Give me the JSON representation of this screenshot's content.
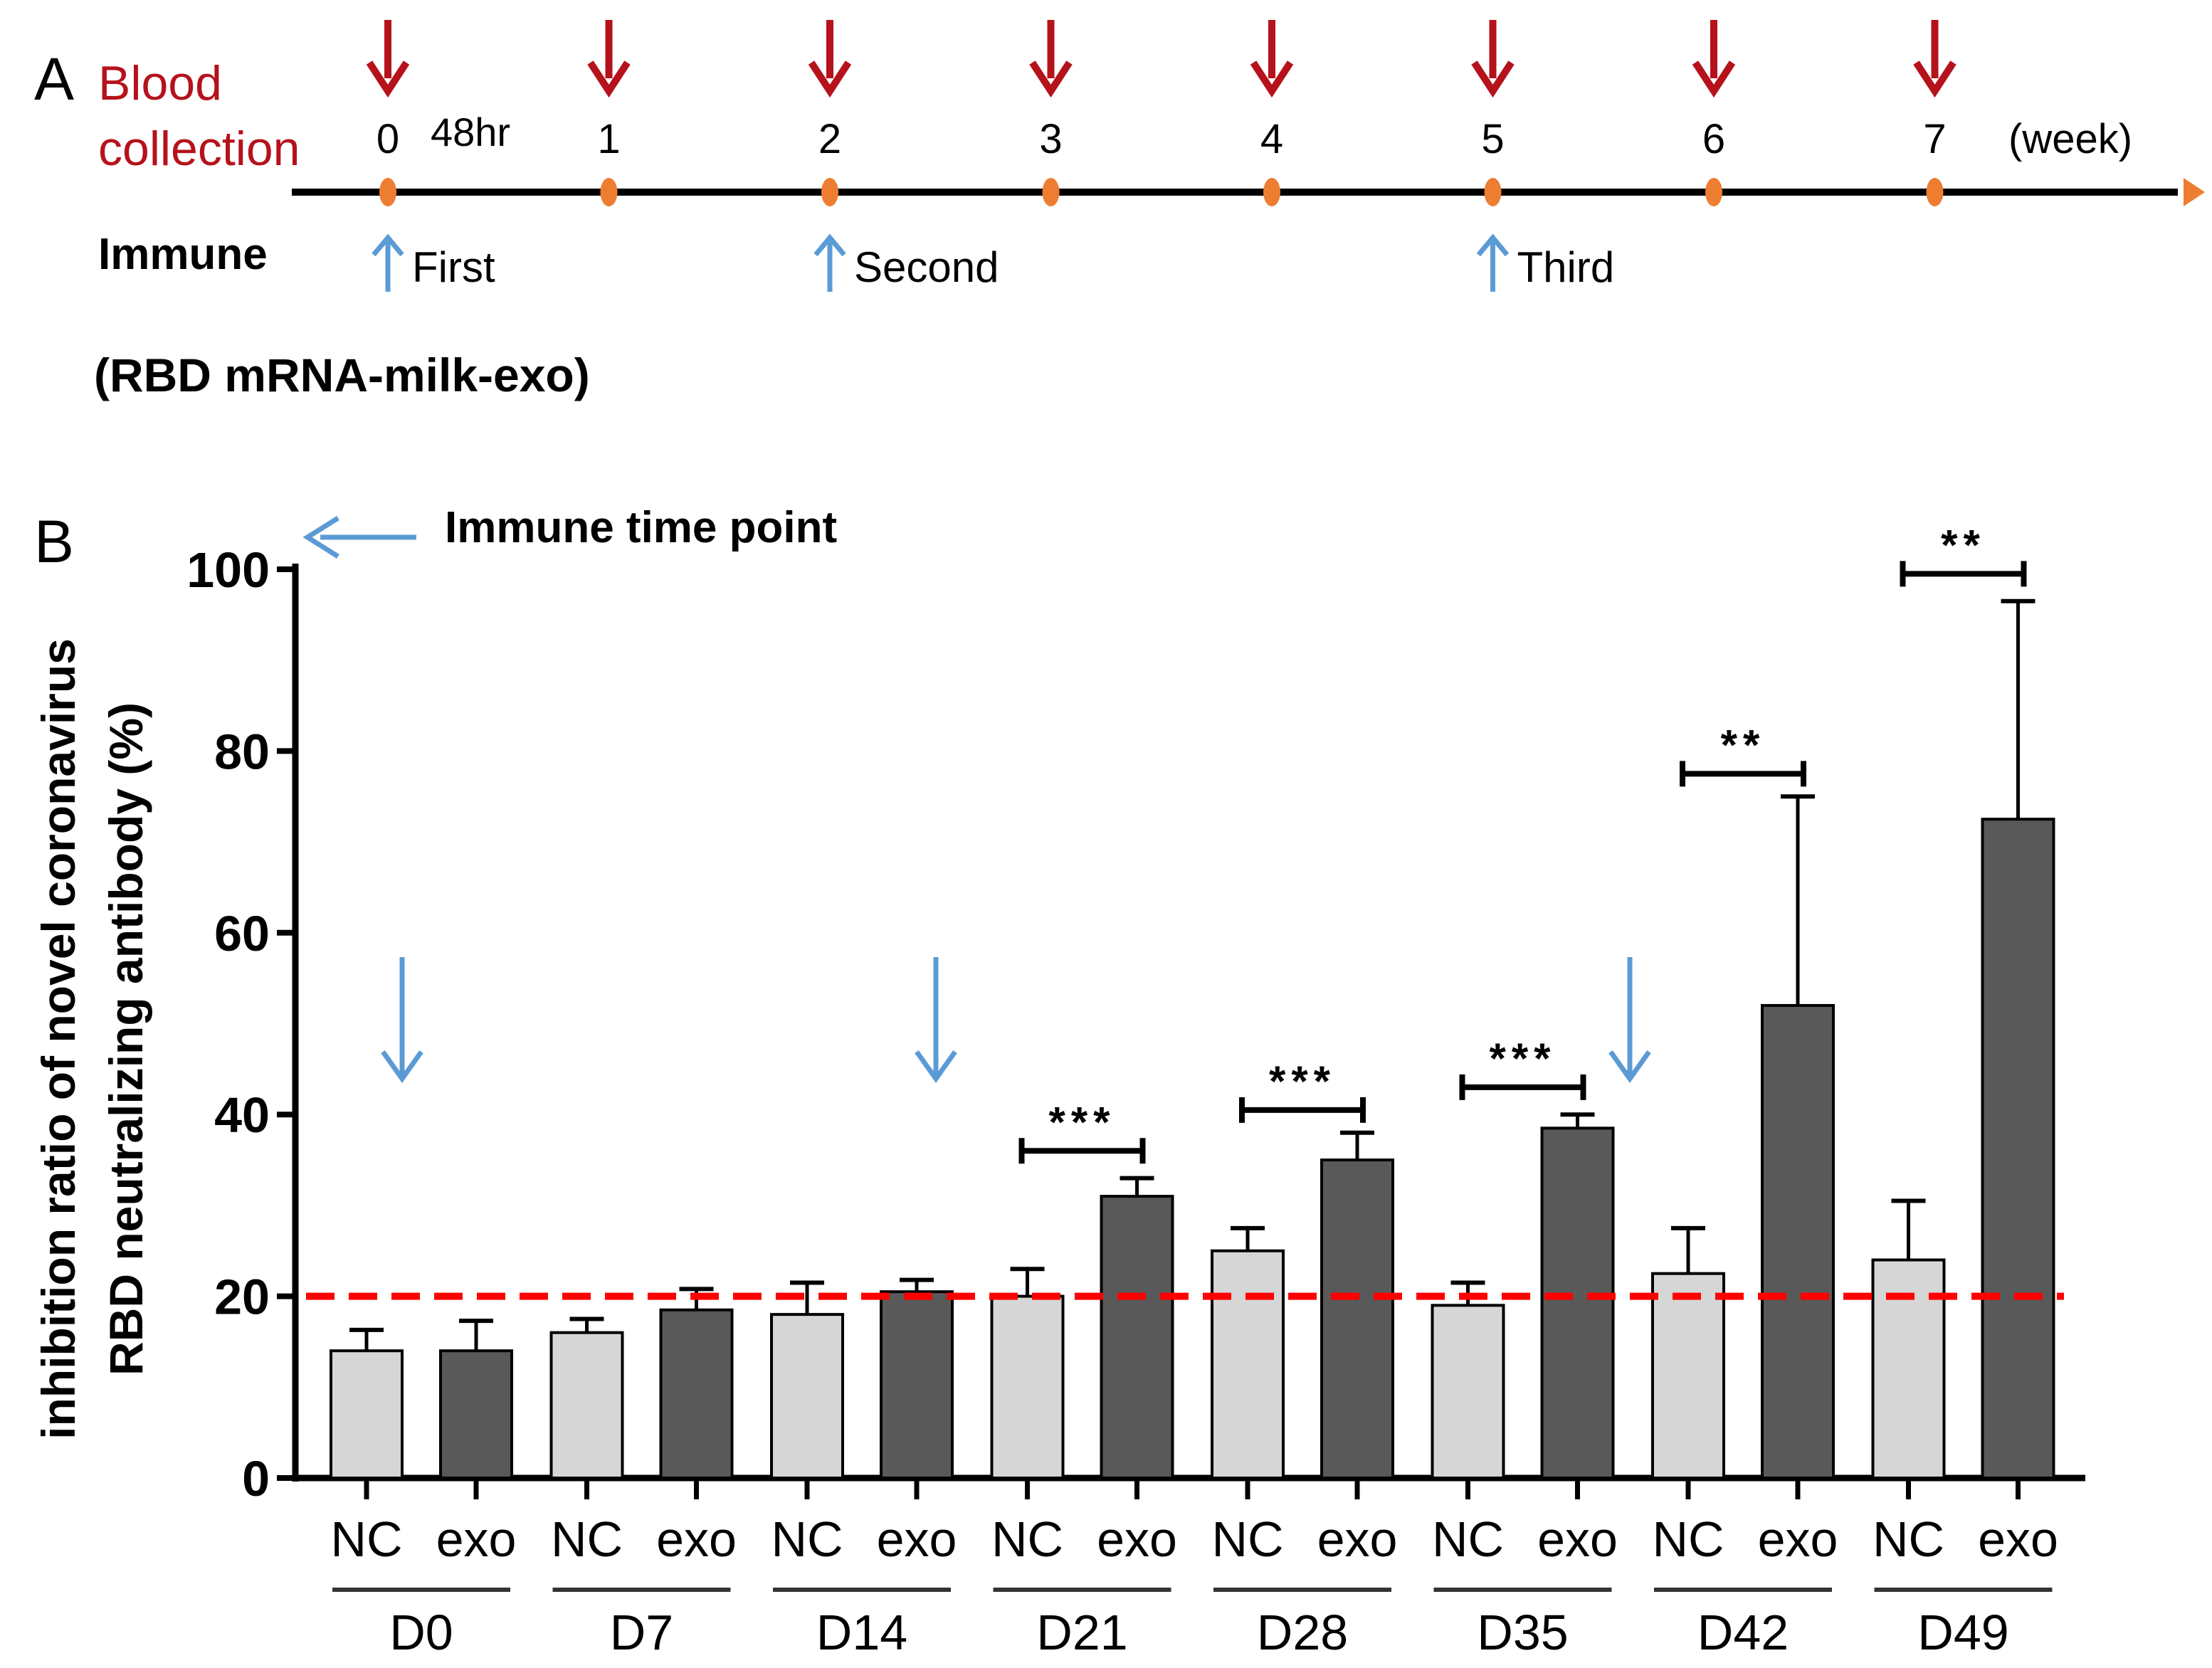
{
  "panel_a": {
    "label": "A",
    "blood_line1": "Blood",
    "blood_line2": "collection",
    "immune_label": "Immune",
    "vaccine_label": "(RBD mRNA-milk-exo)",
    "extra_tick_label": "48hr",
    "unit_label": "(week)",
    "weeks": [
      "0",
      "1",
      "2",
      "3",
      "4",
      "5",
      "6",
      "7"
    ],
    "immunizations": [
      {
        "week": 0,
        "label": "First"
      },
      {
        "week": 2,
        "label": "Second"
      },
      {
        "week": 5,
        "label": "Third"
      }
    ]
  },
  "panel_b": {
    "label": "B",
    "legend_text": "Immune time point"
  },
  "colors": {
    "blood_red": "#b5121b",
    "immune_blue": "#5b9bd5",
    "dot_orange": "#ed7d31",
    "nc_fill": "#d6d6d6",
    "exo_fill": "#595959",
    "threshold_red": "#ff0000",
    "axis": "#000000"
  },
  "chart_data": {
    "type": "bar",
    "title": "",
    "ylabel_line1": "inhibition ratio of novel coronavirus",
    "ylabel_line2": "RBD neutralizing antibody (%)",
    "xlabel": "",
    "ylim": [
      0,
      100
    ],
    "yticks": [
      "0",
      "20",
      "40",
      "60",
      "80",
      "100"
    ],
    "groups": [
      "D0",
      "D7",
      "D14",
      "D21",
      "D28",
      "D35",
      "D42",
      "D49"
    ],
    "subcategories": [
      "NC",
      "exo"
    ],
    "series": [
      {
        "name": "NC",
        "values": [
          14,
          16,
          18,
          20,
          25,
          19,
          22.5,
          24
        ],
        "errors": [
          2.3,
          1.5,
          3.5,
          3,
          2.5,
          2.5,
          5,
          6.5
        ]
      },
      {
        "name": "exo",
        "values": [
          14,
          18.5,
          20.5,
          31,
          35,
          38.5,
          52,
          72.5
        ],
        "errors": [
          3.3,
          2.3,
          1.3,
          2,
          3,
          1.5,
          23,
          24
        ]
      }
    ],
    "threshold": 20,
    "significance": [
      {
        "group": "D21",
        "label": "***",
        "y": 36
      },
      {
        "group": "D28",
        "label": "***",
        "y": 40.5
      },
      {
        "group": "D35",
        "label": "***",
        "y": 43
      },
      {
        "group": "D42",
        "label": "**",
        "y": 77.5
      },
      {
        "group": "D49",
        "label": "**",
        "y": 99.5
      }
    ],
    "immune_markers": [
      "D0",
      "D14",
      "D35"
    ]
  }
}
